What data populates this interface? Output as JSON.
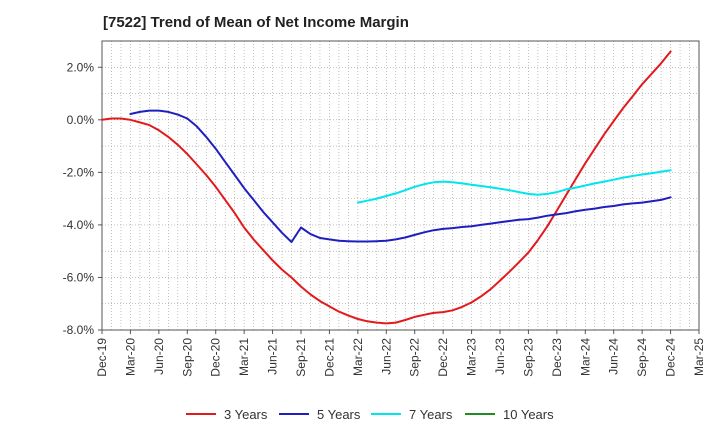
{
  "chart_data": {
    "type": "line",
    "title": "[7522]  Trend of Mean of Net Income Margin",
    "xlabel": "",
    "ylabel": "",
    "x_ticks": [
      "Dec-19",
      "Mar-20",
      "Jun-20",
      "Sep-20",
      "Dec-20",
      "Mar-21",
      "Jun-21",
      "Sep-21",
      "Dec-21",
      "Mar-22",
      "Jun-22",
      "Sep-22",
      "Dec-22",
      "Mar-23",
      "Jun-23",
      "Sep-23",
      "Dec-23",
      "Mar-24",
      "Jun-24",
      "Sep-24",
      "Dec-24",
      "Mar-25"
    ],
    "y_ticks": [
      "2.0%",
      "0.0%",
      "-2.0%",
      "-4.0%",
      "-6.0%",
      "-8.0%"
    ],
    "y_tick_values": [
      2,
      0,
      -2,
      -4,
      -6,
      -8
    ],
    "ylim": [
      -8,
      3
    ],
    "grid": true,
    "legend_position": "bottom",
    "series": [
      {
        "name": "3 Years",
        "color": "#e31a1c",
        "points": [
          [
            "Dec-19",
            0.0
          ],
          [
            "Jan-20",
            0.05
          ],
          [
            "Feb-20",
            0.05
          ],
          [
            "Mar-20",
            0.0
          ],
          [
            "Apr-20",
            -0.1
          ],
          [
            "May-20",
            -0.2
          ],
          [
            "Jun-20",
            -0.4
          ],
          [
            "Jul-20",
            -0.65
          ],
          [
            "Aug-20",
            -0.95
          ],
          [
            "Sep-20",
            -1.3
          ],
          [
            "Oct-20",
            -1.7
          ],
          [
            "Nov-20",
            -2.1
          ],
          [
            "Dec-20",
            -2.55
          ],
          [
            "Jan-21",
            -3.05
          ],
          [
            "Feb-21",
            -3.55
          ],
          [
            "Mar-21",
            -4.1
          ],
          [
            "Apr-21",
            -4.55
          ],
          [
            "May-21",
            -4.95
          ],
          [
            "Jun-21",
            -5.35
          ],
          [
            "Jul-21",
            -5.7
          ],
          [
            "Aug-21",
            -6.0
          ],
          [
            "Sep-21",
            -6.35
          ],
          [
            "Oct-21",
            -6.65
          ],
          [
            "Nov-21",
            -6.9
          ],
          [
            "Dec-21",
            -7.1
          ],
          [
            "Jan-22",
            -7.3
          ],
          [
            "Feb-22",
            -7.45
          ],
          [
            "Mar-22",
            -7.58
          ],
          [
            "Apr-22",
            -7.67
          ],
          [
            "May-22",
            -7.72
          ],
          [
            "Jun-22",
            -7.75
          ],
          [
            "Jul-22",
            -7.72
          ],
          [
            "Aug-22",
            -7.62
          ],
          [
            "Sep-22",
            -7.5
          ],
          [
            "Oct-22",
            -7.42
          ],
          [
            "Nov-22",
            -7.35
          ],
          [
            "Dec-22",
            -7.32
          ],
          [
            "Jan-23",
            -7.25
          ],
          [
            "Feb-23",
            -7.12
          ],
          [
            "Mar-23",
            -6.95
          ],
          [
            "Apr-23",
            -6.72
          ],
          [
            "May-23",
            -6.45
          ],
          [
            "Jun-23",
            -6.12
          ],
          [
            "Jul-23",
            -5.78
          ],
          [
            "Aug-23",
            -5.42
          ],
          [
            "Sep-23",
            -5.05
          ],
          [
            "Oct-23",
            -4.58
          ],
          [
            "Nov-23",
            -4.05
          ],
          [
            "Dec-23",
            -3.45
          ],
          [
            "Jan-24",
            -2.85
          ],
          [
            "Feb-24",
            -2.25
          ],
          [
            "Mar-24",
            -1.65
          ],
          [
            "Apr-24",
            -1.1
          ],
          [
            "May-24",
            -0.55
          ],
          [
            "Jun-24",
            -0.05
          ],
          [
            "Jul-24",
            0.45
          ],
          [
            "Aug-24",
            0.9
          ],
          [
            "Sep-24",
            1.35
          ],
          [
            "Oct-24",
            1.75
          ],
          [
            "Nov-24",
            2.15
          ],
          [
            "Dec-24",
            2.6
          ]
        ]
      },
      {
        "name": "5 Years",
        "color": "#1f1fbf",
        "points": [
          [
            "Mar-20",
            0.22
          ],
          [
            "Apr-20",
            0.3
          ],
          [
            "May-20",
            0.35
          ],
          [
            "Jun-20",
            0.35
          ],
          [
            "Jul-20",
            0.3
          ],
          [
            "Aug-20",
            0.2
          ],
          [
            "Sep-20",
            0.05
          ],
          [
            "Oct-20",
            -0.25
          ],
          [
            "Nov-20",
            -0.65
          ],
          [
            "Dec-20",
            -1.1
          ],
          [
            "Jan-21",
            -1.6
          ],
          [
            "Feb-21",
            -2.1
          ],
          [
            "Mar-21",
            -2.6
          ],
          [
            "Apr-21",
            -3.05
          ],
          [
            "May-21",
            -3.5
          ],
          [
            "Jun-21",
            -3.9
          ],
          [
            "Jul-21",
            -4.3
          ],
          [
            "Aug-21",
            -4.65
          ],
          [
            "Sep-21",
            -4.1
          ],
          [
            "Oct-21",
            -4.35
          ],
          [
            "Nov-21",
            -4.5
          ],
          [
            "Dec-21",
            -4.55
          ],
          [
            "Jan-22",
            -4.6
          ],
          [
            "Feb-22",
            -4.62
          ],
          [
            "Mar-22",
            -4.63
          ],
          [
            "Apr-22",
            -4.63
          ],
          [
            "May-22",
            -4.62
          ],
          [
            "Jun-22",
            -4.6
          ],
          [
            "Jul-22",
            -4.55
          ],
          [
            "Aug-22",
            -4.48
          ],
          [
            "Sep-22",
            -4.38
          ],
          [
            "Oct-22",
            -4.28
          ],
          [
            "Nov-22",
            -4.2
          ],
          [
            "Dec-22",
            -4.15
          ],
          [
            "Jan-23",
            -4.12
          ],
          [
            "Feb-23",
            -4.08
          ],
          [
            "Mar-23",
            -4.05
          ],
          [
            "Apr-23",
            -4.0
          ],
          [
            "May-23",
            -3.95
          ],
          [
            "Jun-23",
            -3.9
          ],
          [
            "Jul-23",
            -3.85
          ],
          [
            "Aug-23",
            -3.8
          ],
          [
            "Sep-23",
            -3.78
          ],
          [
            "Oct-23",
            -3.72
          ],
          [
            "Nov-23",
            -3.65
          ],
          [
            "Dec-23",
            -3.6
          ],
          [
            "Jan-24",
            -3.55
          ],
          [
            "Feb-24",
            -3.48
          ],
          [
            "Mar-24",
            -3.42
          ],
          [
            "Apr-24",
            -3.38
          ],
          [
            "May-24",
            -3.32
          ],
          [
            "Jun-24",
            -3.28
          ],
          [
            "Jul-24",
            -3.22
          ],
          [
            "Aug-24",
            -3.18
          ],
          [
            "Sep-24",
            -3.15
          ],
          [
            "Oct-24",
            -3.1
          ],
          [
            "Nov-24",
            -3.05
          ],
          [
            "Dec-24",
            -2.95
          ]
        ]
      },
      {
        "name": "7 Years",
        "color": "#00e5ee",
        "points": [
          [
            "Mar-22",
            -3.15
          ],
          [
            "Apr-22",
            -3.08
          ],
          [
            "May-22",
            -3.0
          ],
          [
            "Jun-22",
            -2.9
          ],
          [
            "Jul-22",
            -2.8
          ],
          [
            "Aug-22",
            -2.68
          ],
          [
            "Sep-22",
            -2.55
          ],
          [
            "Oct-22",
            -2.45
          ],
          [
            "Nov-22",
            -2.38
          ],
          [
            "Dec-22",
            -2.35
          ],
          [
            "Jan-23",
            -2.38
          ],
          [
            "Feb-23",
            -2.42
          ],
          [
            "Mar-23",
            -2.47
          ],
          [
            "Apr-23",
            -2.52
          ],
          [
            "May-23",
            -2.57
          ],
          [
            "Jun-23",
            -2.62
          ],
          [
            "Jul-23",
            -2.68
          ],
          [
            "Aug-23",
            -2.75
          ],
          [
            "Sep-23",
            -2.82
          ],
          [
            "Oct-23",
            -2.85
          ],
          [
            "Nov-23",
            -2.82
          ],
          [
            "Dec-23",
            -2.75
          ],
          [
            "Jan-24",
            -2.65
          ],
          [
            "Feb-24",
            -2.58
          ],
          [
            "Mar-24",
            -2.5
          ],
          [
            "Apr-24",
            -2.42
          ],
          [
            "May-24",
            -2.35
          ],
          [
            "Jun-24",
            -2.28
          ],
          [
            "Jul-24",
            -2.2
          ],
          [
            "Aug-24",
            -2.14
          ],
          [
            "Sep-24",
            -2.08
          ],
          [
            "Oct-24",
            -2.03
          ],
          [
            "Nov-24",
            -1.98
          ],
          [
            "Dec-24",
            -1.92
          ]
        ]
      },
      {
        "name": "10 Years",
        "color": "#228b22",
        "points": []
      }
    ]
  }
}
